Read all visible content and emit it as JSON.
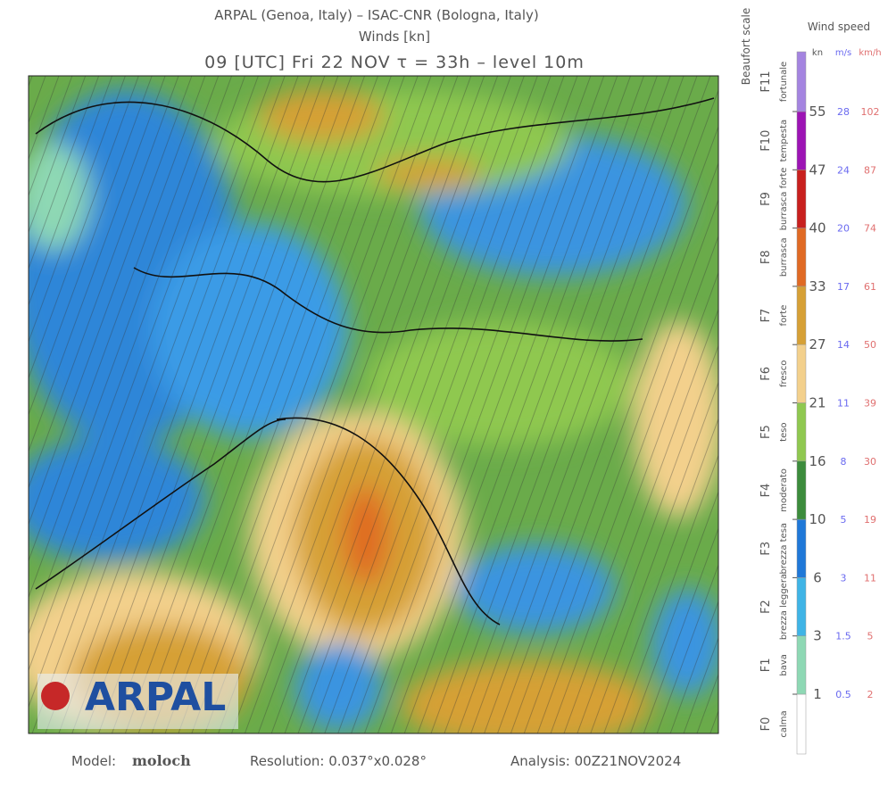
{
  "header": {
    "line1": "ARPAL (Genoa, Italy)  –  ISAC-CNR (Bologna, Italy)",
    "line2": "Winds [kn]",
    "line3": "09 [UTC] Fri 22 NOV  τ = 33h  –  level 10m"
  },
  "legend": {
    "beaufort_title": "Beaufort scale",
    "speed_title": "Wind speed",
    "units": {
      "kn": "kn",
      "ms": "m/s",
      "kmh": "km/h"
    },
    "levels": [
      {
        "kn": 1,
        "ms": 0.5,
        "kmh": 2
      },
      {
        "kn": 3,
        "ms": 1.5,
        "kmh": 5
      },
      {
        "kn": 6,
        "ms": 3,
        "kmh": 11
      },
      {
        "kn": 10,
        "ms": 5,
        "kmh": 19
      },
      {
        "kn": 16,
        "ms": 8,
        "kmh": 30
      },
      {
        "kn": 21,
        "ms": 11,
        "kmh": 39
      },
      {
        "kn": 27,
        "ms": 14,
        "kmh": 50
      },
      {
        "kn": 33,
        "ms": 17,
        "kmh": 61
      },
      {
        "kn": 40,
        "ms": 20,
        "kmh": 74
      },
      {
        "kn": 47,
        "ms": 24,
        "kmh": 87
      },
      {
        "kn": 55,
        "ms": 28,
        "kmh": 102
      }
    ],
    "classes": [
      {
        "force": "F0",
        "name": "calma",
        "color": "#ffffff"
      },
      {
        "force": "F1",
        "name": "bava",
        "color": "#8ed8b4"
      },
      {
        "force": "F2",
        "name": "brezza leggera",
        "color": "#3fb4e6"
      },
      {
        "force": "F3",
        "name": "brezza tesa",
        "color": "#1f78d8"
      },
      {
        "force": "F4",
        "name": "moderato",
        "color": "#3c8c3c"
      },
      {
        "force": "F5",
        "name": "teso",
        "color": "#8fc850"
      },
      {
        "force": "F6",
        "name": "fresco",
        "color": "#f3d08c"
      },
      {
        "force": "F7",
        "name": "forte",
        "color": "#d6a036"
      },
      {
        "force": "F8",
        "name": "burrasca",
        "color": "#e06a24"
      },
      {
        "force": "F9",
        "name": "burrasca forte",
        "color": "#c8201e"
      },
      {
        "force": "F10",
        "name": "tempesta",
        "color": "#9c14b4"
      },
      {
        "force": "F11",
        "name": "fortunale",
        "color": "#a484e0"
      }
    ]
  },
  "logo": {
    "text": "ARPAL"
  },
  "footer": {
    "model_label": "Model:",
    "model": "moloch",
    "resolution": "Resolution: 0.037°x0.028°",
    "analysis": "Analysis: 00Z21NOV2024"
  }
}
